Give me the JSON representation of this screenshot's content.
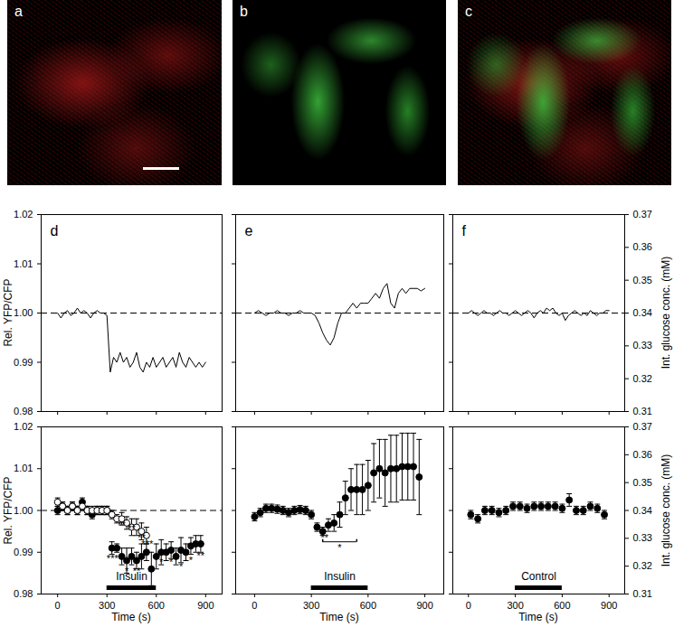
{
  "images": [
    {
      "label": "a"
    },
    {
      "label": "b"
    },
    {
      "label": "c"
    }
  ],
  "chart_data": [
    {
      "type": "line",
      "title": "d",
      "ylabel": "Rel. YFP/CFP",
      "x": [
        0,
        20,
        40,
        60,
        80,
        100,
        120,
        140,
        160,
        180,
        200,
        220,
        240,
        260,
        280,
        300,
        320,
        340,
        360,
        380,
        400,
        420,
        440,
        460,
        480,
        500,
        520,
        540,
        560,
        580,
        600,
        620,
        640,
        660,
        680,
        700,
        720,
        740,
        760,
        780,
        800,
        820,
        840,
        860,
        880,
        900
      ],
      "series": [
        {
          "color": "#000000",
          "values": [
            1.0,
            0.999,
            1.0,
            1.0005,
            0.9995,
            1.0,
            1.001,
            1.0,
            1.0005,
            1.0,
            0.999,
            1.0,
            1.0005,
            1.0,
            1.0,
            0.9995,
            0.988,
            0.991,
            0.99,
            0.992,
            0.99,
            0.991,
            0.989,
            0.99,
            0.992,
            0.989,
            0.988,
            0.99,
            0.989,
            0.991,
            0.989,
            0.99,
            0.991,
            0.989,
            0.99,
            0.991,
            0.989,
            0.992,
            0.99,
            0.989,
            0.991,
            0.99,
            0.989,
            0.99,
            0.989,
            0.99
          ]
        }
      ],
      "reference_line": {
        "y": 1,
        "line_style": "dashed"
      },
      "xlim": [
        -100,
        1000
      ],
      "xticks": [
        0,
        300,
        600,
        900
      ],
      "ylim": [
        0.98,
        1.02
      ],
      "yticks": [
        0.98,
        0.99,
        {
          "value": 1,
          "label": "1.00"
        },
        1.01,
        1.02
      ],
      "tick_labels": "y"
    },
    {
      "type": "line",
      "title": "e",
      "x": [
        0,
        20,
        40,
        60,
        80,
        100,
        120,
        140,
        160,
        180,
        200,
        220,
        240,
        260,
        280,
        300,
        320,
        340,
        360,
        380,
        400,
        420,
        440,
        460,
        480,
        500,
        520,
        540,
        560,
        580,
        600,
        620,
        640,
        660,
        680,
        700,
        720,
        740,
        760,
        780,
        800,
        820,
        840,
        860,
        880,
        900
      ],
      "series": [
        {
          "color": "#000000",
          "values": [
            1.0,
            1.0005,
            1.0,
            0.9995,
            1.0,
            1.0,
            1.0005,
            1.0,
            1.0,
            0.9995,
            1.0,
            1.0,
            1.0005,
            1.0,
            1.0,
            1.0,
            0.9995,
            0.998,
            0.996,
            0.9945,
            0.9935,
            0.995,
            0.998,
            1.0,
            1.0,
            1.001,
            1.002,
            1.001,
            1.002,
            1.002,
            1.002,
            1.003,
            1.004,
            1.003,
            1.005,
            1.006,
            1.002,
            1.001,
            1.004,
            1.005,
            1.004,
            1.005,
            1.005,
            1.005,
            1.0045,
            1.005
          ]
        }
      ],
      "reference_line": {
        "y": 1,
        "line_style": "dashed"
      },
      "xlim": [
        -100,
        1000
      ],
      "xticks": [
        0,
        300,
        600,
        900
      ],
      "ylim": [
        0.98,
        1.02
      ],
      "yticks": [
        0.98,
        0.99,
        {
          "value": 1,
          "label": "1.00"
        },
        1.01,
        1.02
      ],
      "tick_labels": false
    },
    {
      "type": "line",
      "title": "f",
      "y2label": "Int. glucose conc. (mM)",
      "x": [
        0,
        20,
        40,
        60,
        80,
        100,
        120,
        140,
        160,
        180,
        200,
        220,
        240,
        260,
        280,
        300,
        320,
        340,
        360,
        380,
        400,
        420,
        440,
        460,
        480,
        500,
        520,
        540,
        560,
        580,
        600,
        620,
        640,
        660,
        680,
        700,
        720,
        740,
        760,
        780,
        800,
        820,
        840,
        860,
        880,
        900
      ],
      "series": [
        {
          "color": "#000000",
          "values": [
            1.0,
            1.0005,
            1.0,
            0.9995,
            1.0,
            1.0005,
            1.0,
            1.0,
            0.9995,
            1.0,
            1.0005,
            1.0,
            1.0,
            0.9995,
            1.0,
            1.0005,
            1.0,
            0.9995,
            1.0,
            1.0005,
            1.0,
            0.999,
            1.0,
            1.0005,
            1.0,
            1.001,
            1.0005,
            1.001,
            1.0,
            0.9995,
            1.0,
            0.9985,
            0.9995,
            1.0,
            1.0005,
            1.0,
            0.9995,
            1.0,
            0.9995,
            1.0005,
            1.0,
            0.9995,
            1.0,
            1.0,
            1.0005,
            1.0005
          ]
        }
      ],
      "reference_line": {
        "y": 1,
        "line_style": "dashed"
      },
      "xlim": [
        -100,
        1000
      ],
      "xticks": [
        0,
        300,
        600,
        900
      ],
      "ylim": [
        0.98,
        1.02
      ],
      "yticks": [
        0.98,
        0.99,
        {
          "value": 1,
          "label": "1.00"
        },
        1.01,
        1.02
      ],
      "y2lim": [
        0.31,
        0.37
      ],
      "y2ticks": [
        0.31,
        0.32,
        0.33,
        0.34,
        0.35,
        0.36,
        0.37
      ],
      "tick_labels": "y"
    },
    {
      "type": "scatter",
      "ylabel": "Rel. YFP/CFP",
      "xlabel": "Time (s)",
      "series": [
        {
          "color": "#000000",
          "marker": "filled_circle",
          "x": [
            0,
            30,
            60,
            90,
            120,
            150,
            180,
            210,
            240,
            270,
            300,
            330,
            360,
            390,
            420,
            450,
            480,
            510,
            540,
            570,
            600,
            630,
            660,
            690,
            720,
            750,
            780,
            810,
            840,
            870
          ],
          "values": [
            1.0,
            1.001,
            1.0,
            1.001,
            1.0,
            1.002,
            1.0,
            0.999,
            1.0,
            1.0,
            1.0,
            0.991,
            0.991,
            0.989,
            0.988,
            0.989,
            0.988,
            0.989,
            0.99,
            0.986,
            0.989,
            0.99,
            0.99,
            0.9905,
            0.989,
            0.9905,
            0.99,
            0.9915,
            0.992,
            0.992
          ],
          "errors": [
            0.001,
            0.001,
            0.001,
            0.001,
            0.001,
            0.001,
            0.001,
            0.001,
            0.001,
            0.001,
            0.001,
            0.0015,
            0.001,
            0.002,
            0.003,
            0.002,
            0.002,
            0.003,
            0.002,
            0.004,
            0.003,
            0.003,
            0.002,
            0.002,
            0.002,
            0.003,
            0.002,
            0.002,
            0.002,
            0.002
          ]
        },
        {
          "color": "#000000",
          "marker": "open_circle",
          "x": [
            0,
            30,
            60,
            90,
            120,
            150,
            180,
            210,
            240,
            270,
            300,
            330,
            360,
            390,
            420,
            450,
            480,
            510,
            540
          ],
          "values": [
            1.002,
            1.001,
            1.0,
            1.001,
            1.0,
            1.001,
            1.0,
            1.0,
            1.0,
            1.0,
            1.0,
            0.999,
            0.998,
            0.998,
            0.997,
            0.996,
            0.996,
            0.995,
            0.994
          ],
          "errors": [
            0.001,
            0.001,
            0.001,
            0.001,
            0.001,
            0.001,
            0.001,
            0.001,
            0.001,
            0.001,
            0.001,
            0.001,
            0.001,
            0.0015,
            0.0015,
            0.002,
            0.002,
            0.002,
            0.002
          ]
        }
      ],
      "annotations": [
        {
          "x": 345,
          "y": 0.9885,
          "text": "****"
        },
        {
          "x": 420,
          "y": 0.9855,
          "text": "*"
        },
        {
          "x": 480,
          "y": 0.9855,
          "text": "**"
        },
        {
          "x": 630,
          "y": 0.9875,
          "text": "*"
        },
        {
          "x": 690,
          "y": 0.9875,
          "text": "*"
        },
        {
          "x": 750,
          "y": 0.9865,
          "text": "*"
        },
        {
          "x": 810,
          "y": 0.988,
          "text": "*"
        },
        {
          "x": 870,
          "y": 0.989,
          "text": "**"
        },
        {
          "x": 390,
          "y": 0.9965,
          "text": "**"
        },
        {
          "x": 450,
          "y": 0.9955,
          "text": "**"
        },
        {
          "x": 510,
          "y": 0.9935,
          "text": "**"
        },
        {
          "x": 545,
          "y": 0.992,
          "text": "***"
        }
      ],
      "treatment": {
        "label": "Insulin",
        "start": 300,
        "end": 600
      },
      "reference_line": {
        "y": 1,
        "line_style": "dashed"
      },
      "xlim": [
        -100,
        1000
      ],
      "xticks": [
        0,
        300,
        600,
        900
      ],
      "ylim": [
        0.98,
        1.02
      ],
      "yticks": [
        0.98,
        0.99,
        {
          "value": 1,
          "label": "1.00"
        },
        1.01,
        1.02
      ],
      "tick_labels": true
    },
    {
      "type": "scatter",
      "xlabel": "Time (s)",
      "series": [
        {
          "color": "#000000",
          "marker": "filled_circle",
          "x": [
            0,
            30,
            60,
            90,
            120,
            150,
            180,
            210,
            240,
            270,
            300,
            330,
            360,
            390,
            420,
            450,
            480,
            510,
            540,
            570,
            600,
            630,
            660,
            690,
            720,
            750,
            780,
            810,
            840,
            870
          ],
          "values": [
            0.9985,
            0.9995,
            1.0005,
            1.0005,
            1.0003,
            1.0,
            0.9995,
            1.0,
            1.0002,
            1.0,
            0.999,
            0.996,
            0.995,
            0.9965,
            0.997,
            0.999,
            1.003,
            1.005,
            1.005,
            1.005,
            1.006,
            1.009,
            1.01,
            1.009,
            1.01,
            1.01,
            1.0105,
            1.0105,
            1.0105,
            1.008
          ],
          "errors": [
            0.001,
            0.001,
            0.001,
            0.001,
            0.001,
            0.001,
            0.001,
            0.001,
            0.001,
            0.001,
            0.001,
            0.001,
            0.001,
            0.0015,
            0.002,
            0.003,
            0.004,
            0.005,
            0.006,
            0.006,
            0.006,
            0.007,
            0.007,
            0.008,
            0.008,
            0.008,
            0.008,
            0.008,
            0.008,
            0.009
          ]
        }
      ],
      "annotations": [
        {
          "x": 370,
          "y": 0.9935,
          "text": "**"
        }
      ],
      "bracket": {
        "x1": 360,
        "x2": 540,
        "y": 0.9925,
        "text": "*"
      },
      "treatment": {
        "label": "Insulin",
        "start": 300,
        "end": 600
      },
      "xlim": [
        -100,
        1000
      ],
      "xticks": [
        0,
        300,
        600,
        900
      ],
      "ylim": [
        0.98,
        1.02
      ],
      "yticks": [
        0.98,
        0.99,
        {
          "value": 1,
          "label": "1.00"
        },
        1.01,
        1.02
      ],
      "tick_labels": "x"
    },
    {
      "type": "scatter",
      "xlabel": "Time (s)",
      "y2label": "Int. glucose conc. (mM)",
      "series": [
        {
          "color": "#000000",
          "marker": "filled_circle",
          "x": [
            15,
            60,
            105,
            150,
            195,
            240,
            285,
            330,
            375,
            420,
            465,
            510,
            555,
            600,
            645,
            690,
            735,
            780,
            825,
            870
          ],
          "values": [
            0.999,
            0.998,
            1.0,
            1.0,
            0.9995,
            1.0,
            1.001,
            1.001,
            1.0005,
            1.001,
            1.001,
            1.001,
            1.001,
            1.0005,
            1.0025,
            1.0,
            1.0,
            1.001,
            1.0005,
            0.999
          ],
          "errors": [
            0.001,
            0.001,
            0.001,
            0.001,
            0.001,
            0.001,
            0.001,
            0.001,
            0.001,
            0.001,
            0.001,
            0.001,
            0.001,
            0.001,
            0.0015,
            0.001,
            0.001,
            0.001,
            0.001,
            0.001
          ]
        }
      ],
      "treatment": {
        "label": "Control",
        "start": 300,
        "end": 600
      },
      "xlim": [
        -100,
        1000
      ],
      "xticks": [
        0,
        300,
        600,
        900
      ],
      "ylim": [
        0.98,
        1.02
      ],
      "yticks": [
        0.98,
        0.99,
        {
          "value": 1,
          "label": "1.00"
        },
        1.01,
        1.02
      ],
      "y2lim": [
        0.31,
        0.37
      ],
      "y2ticks": [
        0.31,
        0.32,
        0.33,
        0.34,
        0.35,
        0.36,
        0.37
      ],
      "tick_labels": true
    }
  ]
}
